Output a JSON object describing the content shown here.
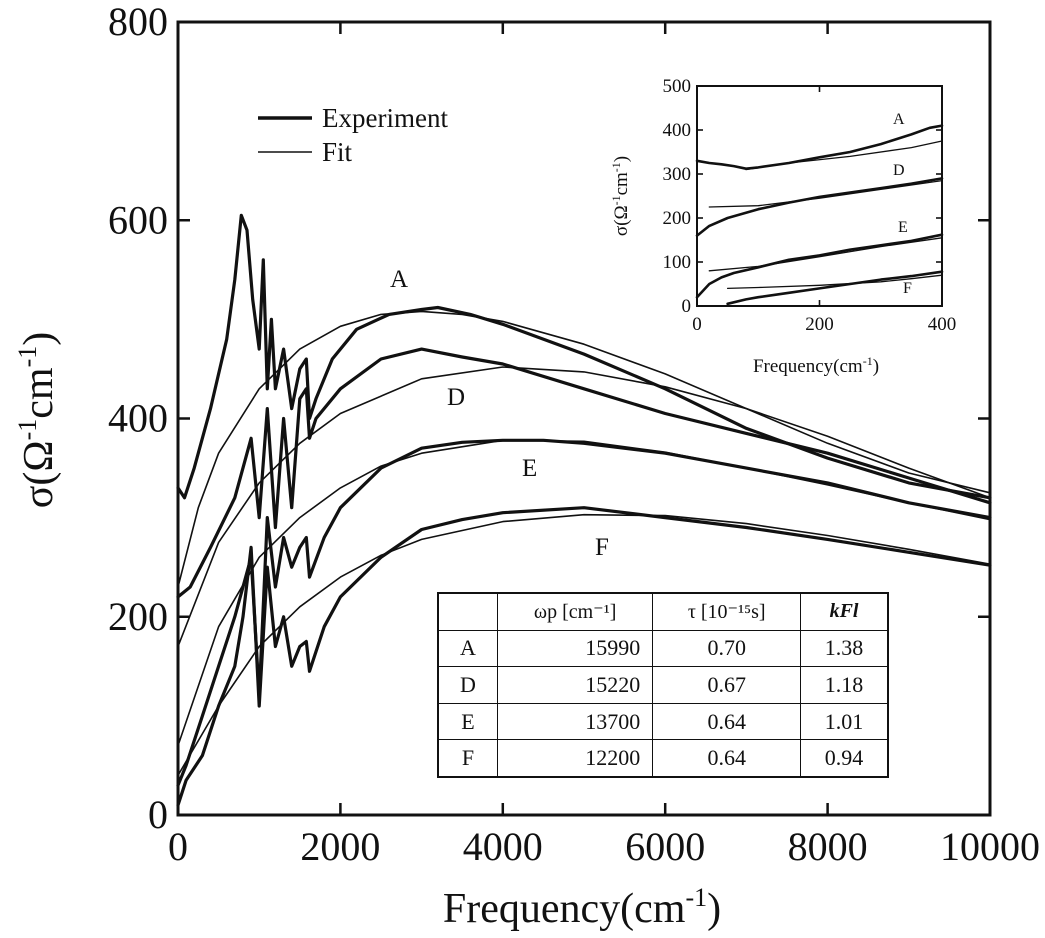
{
  "chart_data": [
    {
      "type": "line",
      "xlabel": "Frequency(cm",
      "xlabel_sup": "-1",
      "xlabel_tail": ")",
      "ylabel": "σ(Ω",
      "ylabel_sup1": "-1",
      "ylabel_mid": "cm",
      "ylabel_sup2": "-1",
      "ylabel_tail": ")",
      "xlim": [
        0,
        10000
      ],
      "ylim": [
        0,
        800
      ],
      "x_ticks": [
        "0",
        "2000",
        "4000",
        "6000",
        "8000",
        "10000"
      ],
      "y_ticks": [
        "0",
        "200",
        "400",
        "600",
        "800"
      ],
      "legend": {
        "position": "top-left",
        "entries": [
          {
            "label": "Experiment",
            "style": "thick"
          },
          {
            "label": "Fit",
            "style": "thin"
          }
        ]
      },
      "series": [
        {
          "name": "A",
          "experiment": {
            "x": [
              0,
              80,
              200,
              400,
              600,
              700,
              780,
              850,
              920,
              1000,
              1050,
              1100,
              1150,
              1200,
              1300,
              1400,
              1500,
              1580,
              1620,
              1700,
              1900,
              2200,
              2600,
              3000,
              3200,
              3600,
              4000,
              5000,
              6000,
              7000,
              8000,
              9000,
              10000
            ],
            "y": [
              330,
              320,
              350,
              410,
              480,
              540,
              605,
              590,
              520,
              470,
              560,
              430,
              500,
              430,
              470,
              410,
              450,
              460,
              400,
              420,
              460,
              490,
              505,
              510,
              512,
              505,
              495,
              465,
              430,
              390,
              360,
              335,
              320
            ]
          },
          "fit": {
            "x": [
              0,
              250,
              500,
              1000,
              1500,
              2000,
              2500,
              3000,
              3500,
              4000,
              5000,
              6000,
              7000,
              8000,
              9000,
              10000
            ],
            "y": [
              230,
              310,
              365,
              430,
              470,
              493,
              505,
              508,
              505,
              498,
              475,
              445,
              410,
              375,
              345,
              325
            ]
          }
        },
        {
          "name": "D",
          "experiment": {
            "x": [
              0,
              150,
              400,
              700,
              900,
              1000,
              1100,
              1200,
              1300,
              1400,
              1500,
              1580,
              1620,
              1700,
              2000,
              2500,
              3000,
              3500,
              4000,
              5000,
              6000,
              7000,
              8000,
              9000,
              10000
            ],
            "y": [
              220,
              230,
              270,
              320,
              380,
              300,
              410,
              290,
              400,
              310,
              420,
              430,
              380,
              400,
              430,
              460,
              470,
              462,
              455,
              430,
              405,
              385,
              365,
              340,
              315
            ]
          },
          "fit": {
            "x": [
              0,
              500,
              1000,
              1500,
              2000,
              3000,
              4000,
              5000,
              6000,
              7000,
              8000,
              9000,
              10000
            ],
            "y": [
              170,
              275,
              335,
              375,
              405,
              440,
              452,
              447,
              432,
              410,
              382,
              350,
              320
            ]
          }
        },
        {
          "name": "E",
          "experiment": {
            "x": [
              0,
              100,
              300,
              500,
              700,
              900,
              1000,
              1100,
              1200,
              1300,
              1400,
              1500,
              1580,
              1620,
              1800,
              2000,
              2500,
              3000,
              3500,
              4000,
              4500,
              5000,
              6000,
              7000,
              8000,
              9000,
              10000
            ],
            "y": [
              30,
              50,
              100,
              150,
              200,
              260,
              120,
              300,
              230,
              280,
              250,
              270,
              280,
              240,
              280,
              310,
              350,
              370,
              376,
              378,
              378,
              375,
              365,
              350,
              335,
              315,
              300
            ]
          },
          "fit": {
            "x": [
              0,
              500,
              1000,
              1500,
              2000,
              2500,
              3000,
              4000,
              5000,
              6000,
              7000,
              8000,
              9000,
              10000
            ],
            "y": [
              70,
              190,
              260,
              300,
              330,
              352,
              365,
              378,
              377,
              366,
              350,
              333,
              315,
              298
            ]
          }
        },
        {
          "name": "F",
          "experiment": {
            "x": [
              0,
              100,
              300,
              500,
              700,
              800,
              900,
              1000,
              1100,
              1200,
              1300,
              1400,
              1500,
              1580,
              1620,
              1800,
              2000,
              2500,
              3000,
              3500,
              4000,
              5000,
              6000,
              7000,
              8000,
              9000,
              10000
            ],
            "y": [
              10,
              35,
              60,
              110,
              150,
              200,
              270,
              110,
              250,
              170,
              200,
              150,
              170,
              175,
              145,
              190,
              220,
              260,
              288,
              298,
              305,
              310,
              300,
              290,
              278,
              265,
              252
            ]
          },
          "fit": {
            "x": [
              0,
              500,
              1000,
              1500,
              2000,
              2500,
              3000,
              4000,
              5000,
              6000,
              7000,
              8000,
              9000,
              10000
            ],
            "y": [
              40,
              110,
              170,
              210,
              240,
              262,
              278,
              296,
              303,
              302,
              294,
              282,
              268,
              253
            ]
          }
        }
      ]
    },
    {
      "type": "line",
      "role": "inset",
      "position": "top-right",
      "xlabel": "Frequency(cm",
      "xlabel_sup": "-1",
      "xlabel_tail": ")",
      "ylabel": "σ(Ω",
      "ylabel_sup1": "-1",
      "ylabel_mid": "cm",
      "ylabel_sup2": "-1",
      "ylabel_tail": ")",
      "xlim": [
        0,
        400
      ],
      "ylim": [
        0,
        500
      ],
      "x_ticks": [
        "0",
        "200",
        "400"
      ],
      "y_ticks": [
        "0",
        "100",
        "200",
        "300",
        "400",
        "500"
      ],
      "series": [
        {
          "name": "A",
          "experiment": {
            "x": [
              0,
              20,
              40,
              60,
              80,
              100,
              150,
              200,
              250,
              300,
              350,
              380,
              400
            ],
            "y": [
              330,
              325,
              322,
              318,
              312,
              315,
              325,
              338,
              350,
              368,
              390,
              405,
              410
            ]
          },
          "fit": {
            "x": [
              80,
              150,
              250,
              350,
              400
            ],
            "y": [
              310,
              325,
              340,
              360,
              375
            ]
          }
        },
        {
          "name": "D",
          "experiment": {
            "x": [
              0,
              20,
              50,
              100,
              150,
              200,
              250,
              300,
              350,
              400
            ],
            "y": [
              160,
              182,
              200,
              220,
              235,
              248,
              258,
              268,
              278,
              290
            ]
          },
          "fit": {
            "x": [
              20,
              100,
              200,
              300,
              400
            ],
            "y": [
              225,
              228,
              245,
              265,
              285
            ]
          }
        },
        {
          "name": "E",
          "experiment": {
            "x": [
              0,
              20,
              40,
              60,
              100,
              150,
              200,
              250,
              300,
              350,
              400
            ],
            "y": [
              20,
              50,
              65,
              75,
              88,
              105,
              115,
              128,
              138,
              148,
              162
            ]
          },
          "fit": {
            "x": [
              20,
              100,
              200,
              300,
              400
            ],
            "y": [
              80,
              90,
              112,
              135,
              155
            ]
          }
        },
        {
          "name": "F",
          "experiment": {
            "x": [
              50,
              80,
              100,
              150,
              200,
              250,
              300,
              350,
              400
            ],
            "y": [
              5,
              15,
              20,
              30,
              40,
              50,
              60,
              68,
              78
            ]
          },
          "fit": {
            "x": [
              50,
              100,
              200,
              300,
              350,
              400
            ],
            "y": [
              40,
              42,
              47,
              55,
              62,
              70
            ]
          }
        }
      ]
    }
  ],
  "table": {
    "headers": [
      "",
      "ωp [cm⁻¹]",
      "τ [10⁻¹⁵s]",
      "kFl"
    ],
    "rows": [
      [
        "A",
        "15990",
        "0.70",
        "1.38"
      ],
      [
        "D",
        "15220",
        "0.67",
        "1.18"
      ],
      [
        "E",
        "13700",
        "0.64",
        "1.01"
      ],
      [
        "F",
        "12200",
        "0.64",
        "0.94"
      ]
    ]
  }
}
